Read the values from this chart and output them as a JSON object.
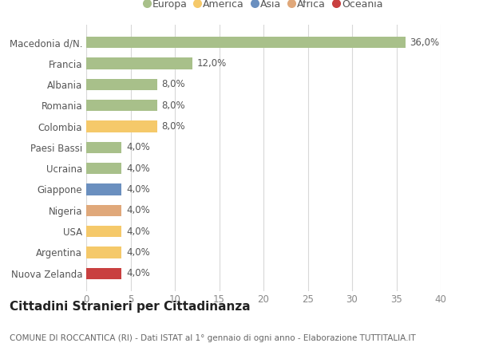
{
  "categories": [
    "Macedonia d/N.",
    "Francia",
    "Albania",
    "Romania",
    "Colombia",
    "Paesi Bassi",
    "Ucraina",
    "Giappone",
    "Nigeria",
    "USA",
    "Argentina",
    "Nuova Zelanda"
  ],
  "values": [
    36.0,
    12.0,
    8.0,
    8.0,
    8.0,
    4.0,
    4.0,
    4.0,
    4.0,
    4.0,
    4.0,
    4.0
  ],
  "colors": [
    "#a8c08a",
    "#a8c08a",
    "#a8c08a",
    "#a8c08a",
    "#f5c96a",
    "#a8c08a",
    "#a8c08a",
    "#6a8fbf",
    "#e0a87a",
    "#f5c96a",
    "#f5c96a",
    "#c94040"
  ],
  "legend_labels": [
    "Europa",
    "America",
    "Asia",
    "Africa",
    "Oceania"
  ],
  "legend_colors": [
    "#a8c08a",
    "#f5c96a",
    "#6a8fbf",
    "#e0a87a",
    "#c94040"
  ],
  "xlim": [
    0,
    40
  ],
  "xticks": [
    0,
    5,
    10,
    15,
    20,
    25,
    30,
    35,
    40
  ],
  "title": "Cittadini Stranieri per Cittadinanza",
  "subtitle": "COMUNE DI ROCCANTICA (RI) - Dati ISTAT al 1° gennaio di ogni anno - Elaborazione TUTTITALIA.IT",
  "background_color": "#ffffff",
  "grid_color": "#d8d8d8",
  "bar_label_fontsize": 8.5,
  "ytick_fontsize": 8.5,
  "xtick_fontsize": 8.5,
  "legend_fontsize": 9,
  "title_fontsize": 11,
  "subtitle_fontsize": 7.5,
  "bar_height": 0.55
}
